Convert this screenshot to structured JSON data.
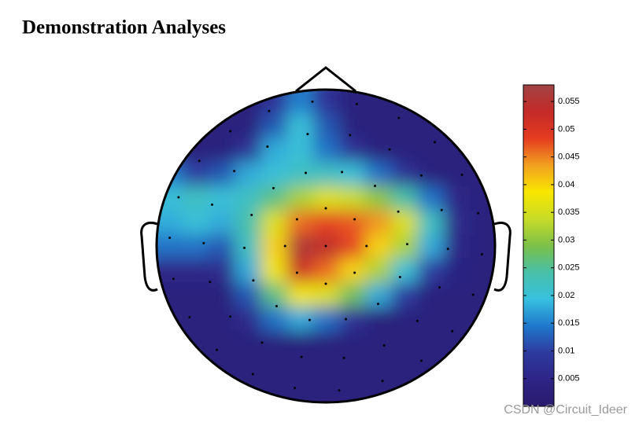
{
  "chart_data": {
    "type": "topoplot",
    "title": "Demonstration Analyses",
    "grid_values": [
      [
        0.003,
        0.003,
        0.003,
        0.003,
        0.008,
        0.015,
        0.008,
        0.003,
        0.003,
        0.003,
        0.003,
        0.003,
        0.003
      ],
      [
        0.003,
        0.003,
        0.003,
        0.003,
        0.012,
        0.02,
        0.012,
        0.003,
        0.003,
        0.003,
        0.003,
        0.003,
        0.003
      ],
      [
        0.003,
        0.003,
        0.003,
        0.008,
        0.018,
        0.02,
        0.014,
        0.008,
        0.003,
        0.003,
        0.003,
        0.003,
        0.003
      ],
      [
        0.015,
        0.01,
        0.012,
        0.018,
        0.02,
        0.022,
        0.022,
        0.02,
        0.014,
        0.008,
        0.003,
        0.003,
        0.003
      ],
      [
        0.02,
        0.022,
        0.02,
        0.022,
        0.026,
        0.032,
        0.036,
        0.034,
        0.03,
        0.024,
        0.014,
        0.005,
        0.003
      ],
      [
        0.018,
        0.02,
        0.018,
        0.024,
        0.036,
        0.046,
        0.048,
        0.047,
        0.044,
        0.036,
        0.022,
        0.006,
        0.003
      ],
      [
        0.014,
        0.014,
        0.012,
        0.022,
        0.04,
        0.056,
        0.054,
        0.048,
        0.04,
        0.032,
        0.018,
        0.005,
        0.003
      ],
      [
        0.005,
        0.005,
        0.006,
        0.018,
        0.038,
        0.052,
        0.046,
        0.04,
        0.032,
        0.02,
        0.01,
        0.004,
        0.003
      ],
      [
        0.003,
        0.003,
        0.003,
        0.012,
        0.026,
        0.038,
        0.036,
        0.028,
        0.018,
        0.01,
        0.003,
        0.003,
        0.003
      ],
      [
        0.003,
        0.003,
        0.003,
        0.006,
        0.014,
        0.018,
        0.014,
        0.008,
        0.003,
        0.003,
        0.003,
        0.003,
        0.003
      ],
      [
        0.003,
        0.003,
        0.003,
        0.003,
        0.003,
        0.003,
        0.003,
        0.003,
        0.003,
        0.003,
        0.003,
        0.003,
        0.003
      ],
      [
        0.003,
        0.003,
        0.003,
        0.003,
        0.003,
        0.003,
        0.003,
        0.003,
        0.003,
        0.003,
        0.003,
        0.003,
        0.003
      ],
      [
        0.003,
        0.003,
        0.003,
        0.003,
        0.003,
        0.003,
        0.003,
        0.003,
        0.003,
        0.003,
        0.003,
        0.003,
        0.003
      ]
    ],
    "colormap": [
      "#2a1a6e",
      "#2d2486",
      "#2e3a9e",
      "#1f78cc",
      "#38c0e0",
      "#48c0a8",
      "#7cc048",
      "#c8dc28",
      "#f8e600",
      "#f2a020",
      "#e43c20",
      "#c42a28",
      "#a04444"
    ],
    "clim": [
      0,
      0.058
    ],
    "cticks": [
      0.005,
      0.01,
      0.015,
      0.02,
      0.025,
      0.03,
      0.035,
      0.04,
      0.045,
      0.05,
      0.055
    ]
  },
  "watermark": "CSDN @Circuit_Ideer"
}
